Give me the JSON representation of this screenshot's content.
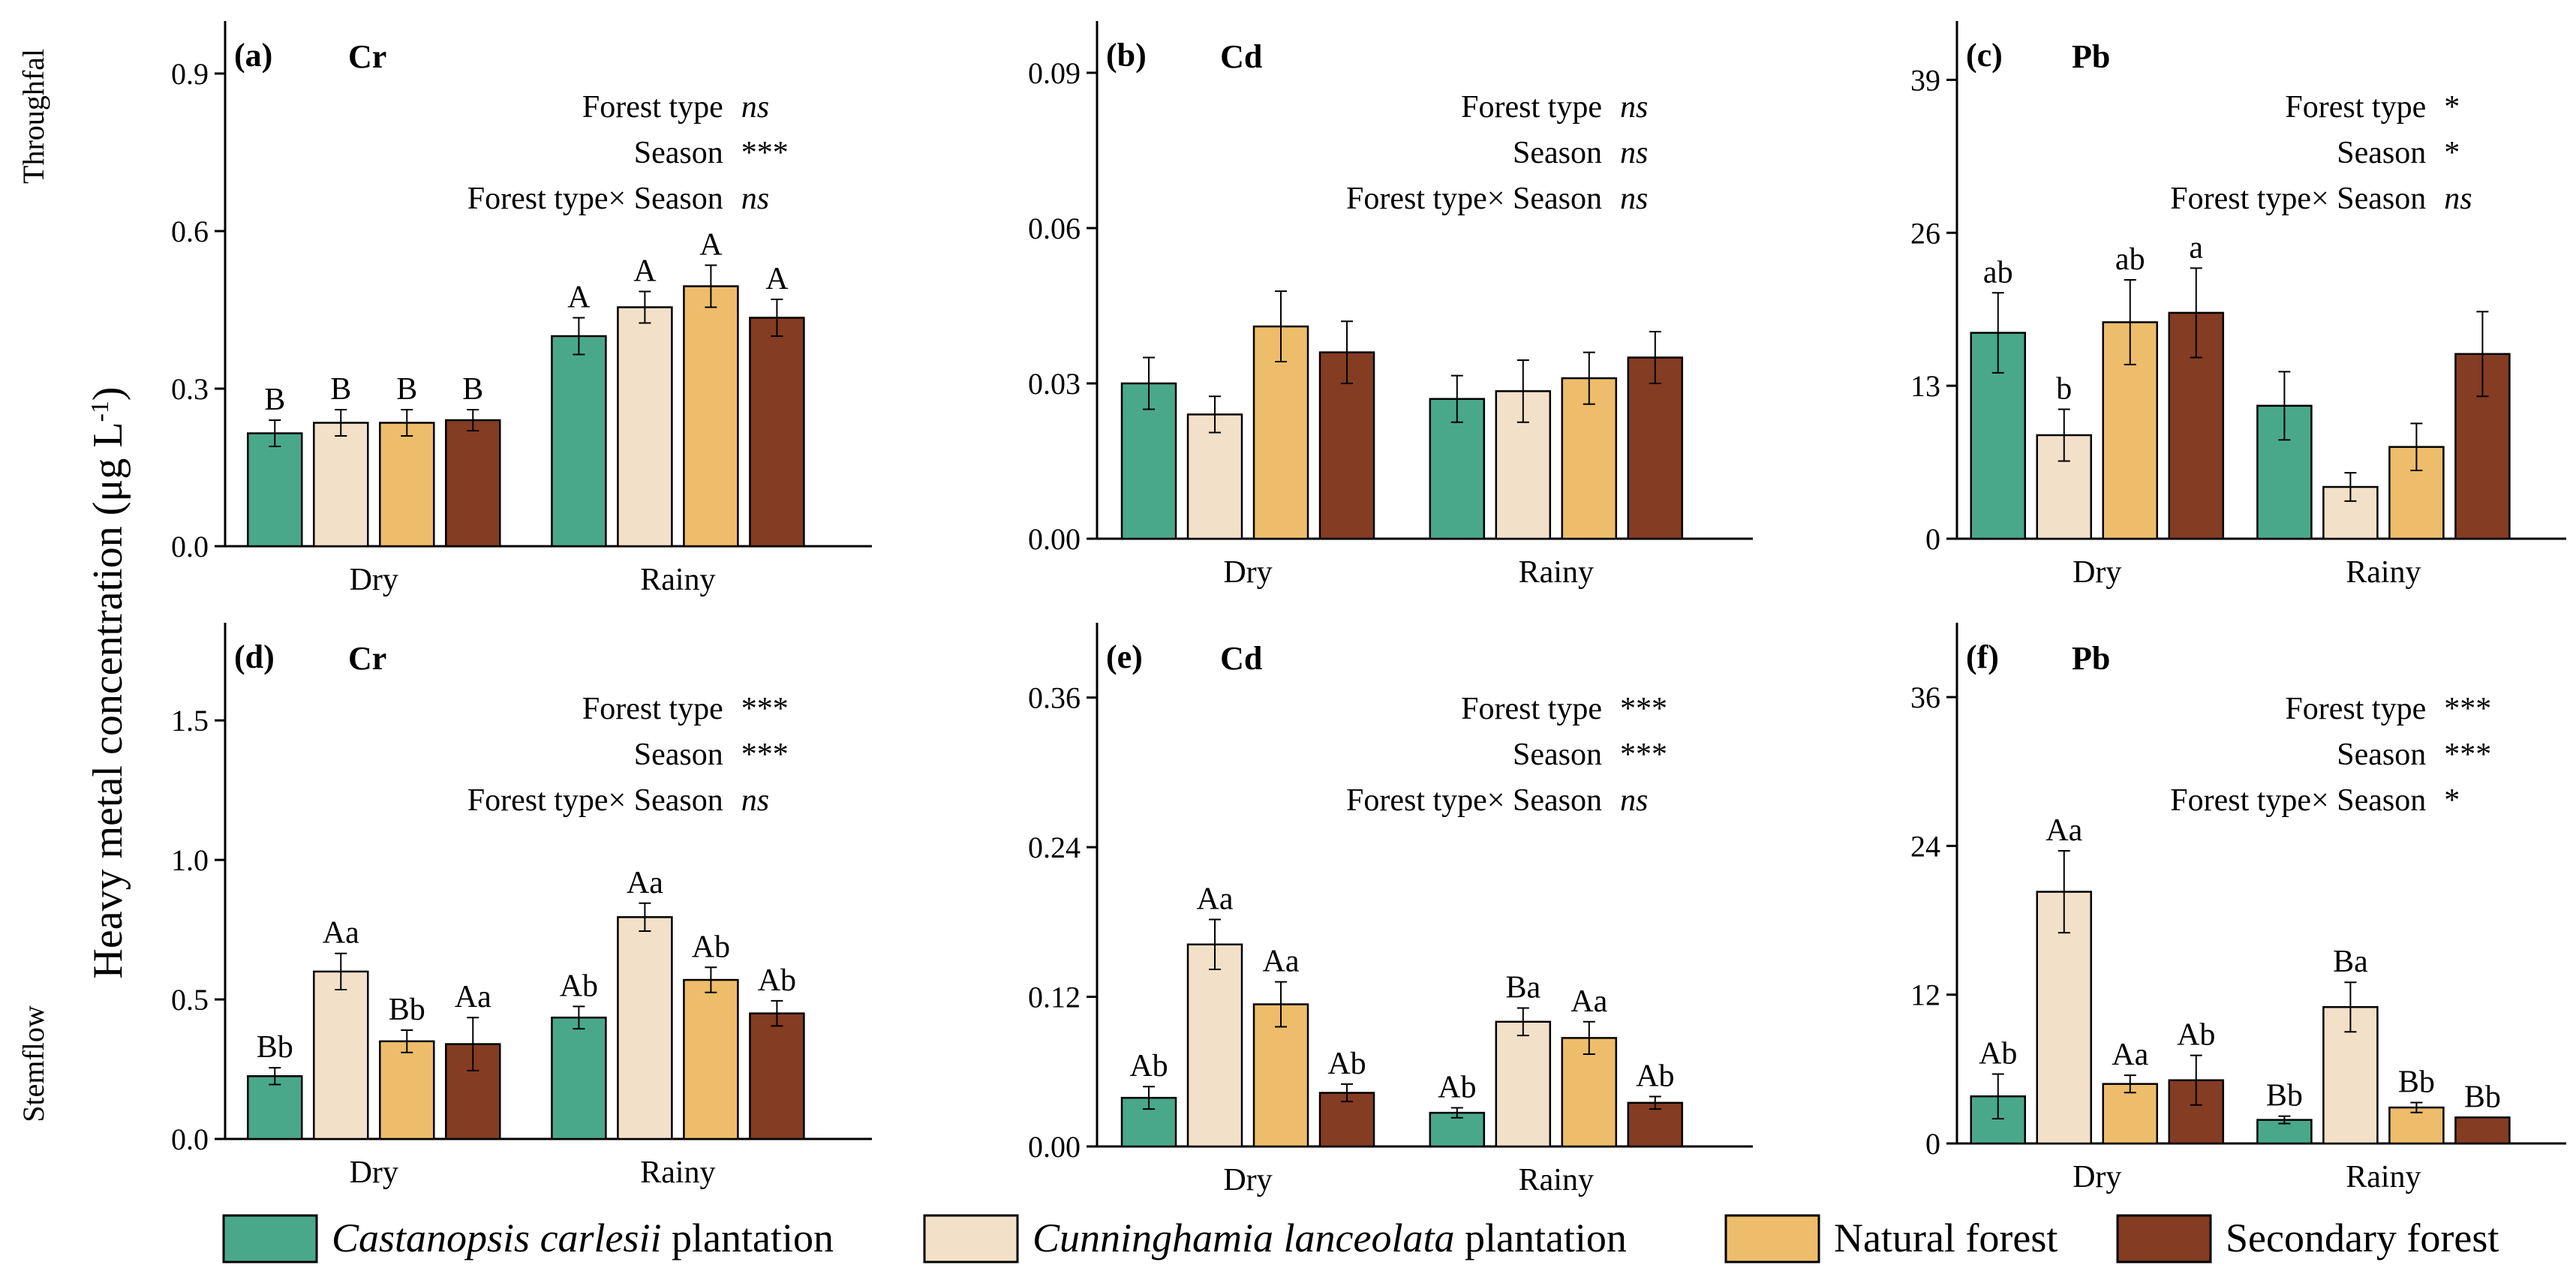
{
  "colors": {
    "castanopsis": "#4aa88a",
    "cunninghamia": "#f2e0c8",
    "natural": "#edbd6b",
    "secondary": "#843c22"
  },
  "y_axis_label": "Heavy metal concentration (μg L",
  "y_axis_sup": "-1",
  "y_axis_close": ")",
  "row_labels": {
    "top": "Throughfal",
    "bottom": "Stemflow"
  },
  "legend": {
    "items": [
      {
        "key": "castanopsis",
        "italic": "Castanopsis carlesii",
        "rest": " plantation"
      },
      {
        "key": "cunninghamia",
        "italic": "Cunninghamia lanceolata",
        "rest": " plantation"
      },
      {
        "key": "natural",
        "italic": "",
        "rest": "Natural forest"
      },
      {
        "key": "secondary",
        "italic": "",
        "rest": "Secondary forest"
      }
    ]
  },
  "chart_data": [
    {
      "type": "bar",
      "panel": "(a)",
      "title": "Cr",
      "row": "Throughfal",
      "categories": [
        "Dry",
        "Rainy"
      ],
      "ylim": [
        0,
        1.0
      ],
      "yticks": [
        0.0,
        0.3,
        0.6,
        0.9
      ],
      "ytick_labels": [
        "0.0",
        "0.3",
        "0.6",
        "0.9"
      ],
      "series": [
        {
          "name": "Castanopsis carlesii plantation",
          "values": [
            0.215,
            0.4
          ],
          "errors": [
            0.025,
            0.035
          ],
          "labels": [
            "B",
            "A"
          ]
        },
        {
          "name": "Cunninghamia lanceolata plantation",
          "values": [
            0.235,
            0.455
          ],
          "errors": [
            0.025,
            0.03
          ],
          "labels": [
            "B",
            "A"
          ]
        },
        {
          "name": "Natural forest",
          "values": [
            0.235,
            0.495
          ],
          "errors": [
            0.025,
            0.04
          ],
          "labels": [
            "B",
            "A"
          ]
        },
        {
          "name": "Secondary forest",
          "values": [
            0.24,
            0.435
          ],
          "errors": [
            0.02,
            0.035
          ],
          "labels": [
            "B",
            "A"
          ]
        }
      ],
      "stats": [
        {
          "label": "Forest type",
          "value": "ns",
          "italic": true
        },
        {
          "label": "Season",
          "value": "***",
          "italic": false
        },
        {
          "label": "Forest type× Season",
          "value": "ns",
          "italic": true
        }
      ]
    },
    {
      "type": "bar",
      "panel": "(b)",
      "title": "Cd",
      "row": "Throughfal",
      "categories": [
        "Dry",
        "Rainy"
      ],
      "ylim": [
        0,
        0.1
      ],
      "yticks": [
        0.0,
        0.03,
        0.06,
        0.09
      ],
      "ytick_labels": [
        "0.00",
        "0.03",
        "0.06",
        "0.09"
      ],
      "series": [
        {
          "name": "Castanopsis carlesii plantation",
          "values": [
            0.03,
            0.027
          ],
          "errors": [
            0.005,
            0.0045
          ],
          "labels": [
            "",
            ""
          ]
        },
        {
          "name": "Cunninghamia lanceolata plantation",
          "values": [
            0.024,
            0.0285
          ],
          "errors": [
            0.0035,
            0.006
          ],
          "labels": [
            "",
            ""
          ]
        },
        {
          "name": "Natural forest",
          "values": [
            0.041,
            0.031
          ],
          "errors": [
            0.0068,
            0.005
          ],
          "labels": [
            "",
            ""
          ]
        },
        {
          "name": "Secondary forest",
          "values": [
            0.036,
            0.035
          ],
          "errors": [
            0.006,
            0.005
          ],
          "labels": [
            "",
            ""
          ]
        }
      ],
      "stats": [
        {
          "label": "Forest type",
          "value": "ns",
          "italic": true
        },
        {
          "label": "Season",
          "value": "ns",
          "italic": true
        },
        {
          "label": "Forest type× Season",
          "value": "ns",
          "italic": true
        }
      ]
    },
    {
      "type": "bar",
      "panel": "(c)",
      "title": "Pb",
      "row": "Throughfal",
      "categories": [
        "Dry",
        "Rainy"
      ],
      "ylim": [
        0,
        44
      ],
      "yticks": [
        0,
        13,
        26,
        39
      ],
      "ytick_labels": [
        "0",
        "13",
        "26",
        "39"
      ],
      "series": [
        {
          "name": "Castanopsis carlesii plantation",
          "values": [
            17.5,
            11.3
          ],
          "errors": [
            3.4,
            2.9
          ],
          "labels": [
            "ab",
            ""
          ]
        },
        {
          "name": "Cunninghamia lanceolata plantation",
          "values": [
            8.8,
            4.4
          ],
          "errors": [
            2.2,
            1.2
          ],
          "labels": [
            "b",
            ""
          ]
        },
        {
          "name": "Natural forest",
          "values": [
            18.4,
            7.8
          ],
          "errors": [
            3.6,
            2.0
          ],
          "labels": [
            "ab",
            ""
          ]
        },
        {
          "name": "Secondary forest",
          "values": [
            19.2,
            15.7
          ],
          "errors": [
            3.8,
            3.6
          ],
          "labels": [
            "a",
            ""
          ]
        }
      ],
      "stats": [
        {
          "label": "Forest type",
          "value": "*",
          "italic": false
        },
        {
          "label": "Season",
          "value": "*",
          "italic": false
        },
        {
          "label": "Forest type× Season",
          "value": "ns",
          "italic": true
        }
      ]
    },
    {
      "type": "bar",
      "panel": "(d)",
      "title": "Cr",
      "row": "Stemflow",
      "categories": [
        "Dry",
        "Rainy"
      ],
      "ylim": [
        0,
        1.85
      ],
      "yticks": [
        0.0,
        0.5,
        1.0,
        1.5
      ],
      "ytick_labels": [
        "0.0",
        "0.5",
        "1.0",
        "1.5"
      ],
      "series": [
        {
          "name": "Castanopsis carlesii plantation",
          "values": [
            0.225,
            0.435
          ],
          "errors": [
            0.03,
            0.04
          ],
          "labels": [
            "Bb",
            "Ab"
          ]
        },
        {
          "name": "Cunninghamia lanceolata plantation",
          "values": [
            0.6,
            0.795
          ],
          "errors": [
            0.065,
            0.05
          ],
          "labels": [
            "Aa",
            "Aa"
          ]
        },
        {
          "name": "Natural forest",
          "values": [
            0.35,
            0.57
          ],
          "errors": [
            0.04,
            0.045
          ],
          "labels": [
            "Bb",
            "Ab"
          ]
        },
        {
          "name": "Secondary forest",
          "values": [
            0.34,
            0.45
          ],
          "errors": [
            0.095,
            0.045
          ],
          "labels": [
            "Aa",
            "Ab"
          ]
        }
      ],
      "stats": [
        {
          "label": "Forest type",
          "value": "***",
          "italic": false
        },
        {
          "label": "Season",
          "value": "***",
          "italic": false
        },
        {
          "label": "Forest type× Season",
          "value": "ns",
          "italic": true
        }
      ]
    },
    {
      "type": "bar",
      "panel": "(e)",
      "title": "Cd",
      "row": "Stemflow",
      "categories": [
        "Dry",
        "Rainy"
      ],
      "ylim": [
        0,
        0.42
      ],
      "yticks": [
        0.0,
        0.12,
        0.24,
        0.36
      ],
      "ytick_labels": [
        "0.00",
        "0.12",
        "0.24",
        "0.36"
      ],
      "series": [
        {
          "name": "Castanopsis carlesii plantation",
          "values": [
            0.039,
            0.027
          ],
          "errors": [
            0.009,
            0.004
          ],
          "labels": [
            "Ab",
            "Ab"
          ]
        },
        {
          "name": "Cunninghamia lanceolata plantation",
          "values": [
            0.162,
            0.1
          ],
          "errors": [
            0.02,
            0.011
          ],
          "labels": [
            "Aa",
            "Ba"
          ]
        },
        {
          "name": "Natural forest",
          "values": [
            0.114,
            0.087
          ],
          "errors": [
            0.018,
            0.013
          ],
          "labels": [
            "Aa",
            "Aa"
          ]
        },
        {
          "name": "Secondary forest",
          "values": [
            0.043,
            0.035
          ],
          "errors": [
            0.007,
            0.005
          ],
          "labels": [
            "Ab",
            "Ab"
          ]
        }
      ],
      "stats": [
        {
          "label": "Forest type",
          "value": "***",
          "italic": false
        },
        {
          "label": "Season",
          "value": "***",
          "italic": false
        },
        {
          "label": "Forest type× Season",
          "value": "ns",
          "italic": true
        }
      ]
    },
    {
      "type": "bar",
      "panel": "(f)",
      "title": "Pb",
      "row": "Stemflow",
      "categories": [
        "Dry",
        "Rainy"
      ],
      "ylim": [
        0,
        42
      ],
      "yticks": [
        0,
        12,
        24,
        36
      ],
      "ytick_labels": [
        "0",
        "12",
        "24",
        "36"
      ],
      "series": [
        {
          "name": "Castanopsis carlesii plantation",
          "values": [
            3.8,
            1.9
          ],
          "errors": [
            1.8,
            0.3
          ],
          "labels": [
            "Ab",
            "Bb"
          ]
        },
        {
          "name": "Cunninghamia lanceolata plantation",
          "values": [
            20.3,
            11.0
          ],
          "errors": [
            3.3,
            2.0
          ],
          "labels": [
            "Aa",
            "Ba"
          ]
        },
        {
          "name": "Natural forest",
          "values": [
            4.8,
            2.9
          ],
          "errors": [
            0.7,
            0.4
          ],
          "labels": [
            "Aa",
            "Bb"
          ]
        },
        {
          "name": "Secondary forest",
          "values": [
            5.1,
            2.1
          ],
          "errors": [
            2.0,
            0.0
          ],
          "labels": [
            "Ab",
            "Bb"
          ]
        }
      ],
      "stats": [
        {
          "label": "Forest type",
          "value": "***",
          "italic": false
        },
        {
          "label": "Season",
          "value": "***",
          "italic": false
        },
        {
          "label": "Forest type× Season",
          "value": "*",
          "italic": false
        }
      ]
    }
  ]
}
